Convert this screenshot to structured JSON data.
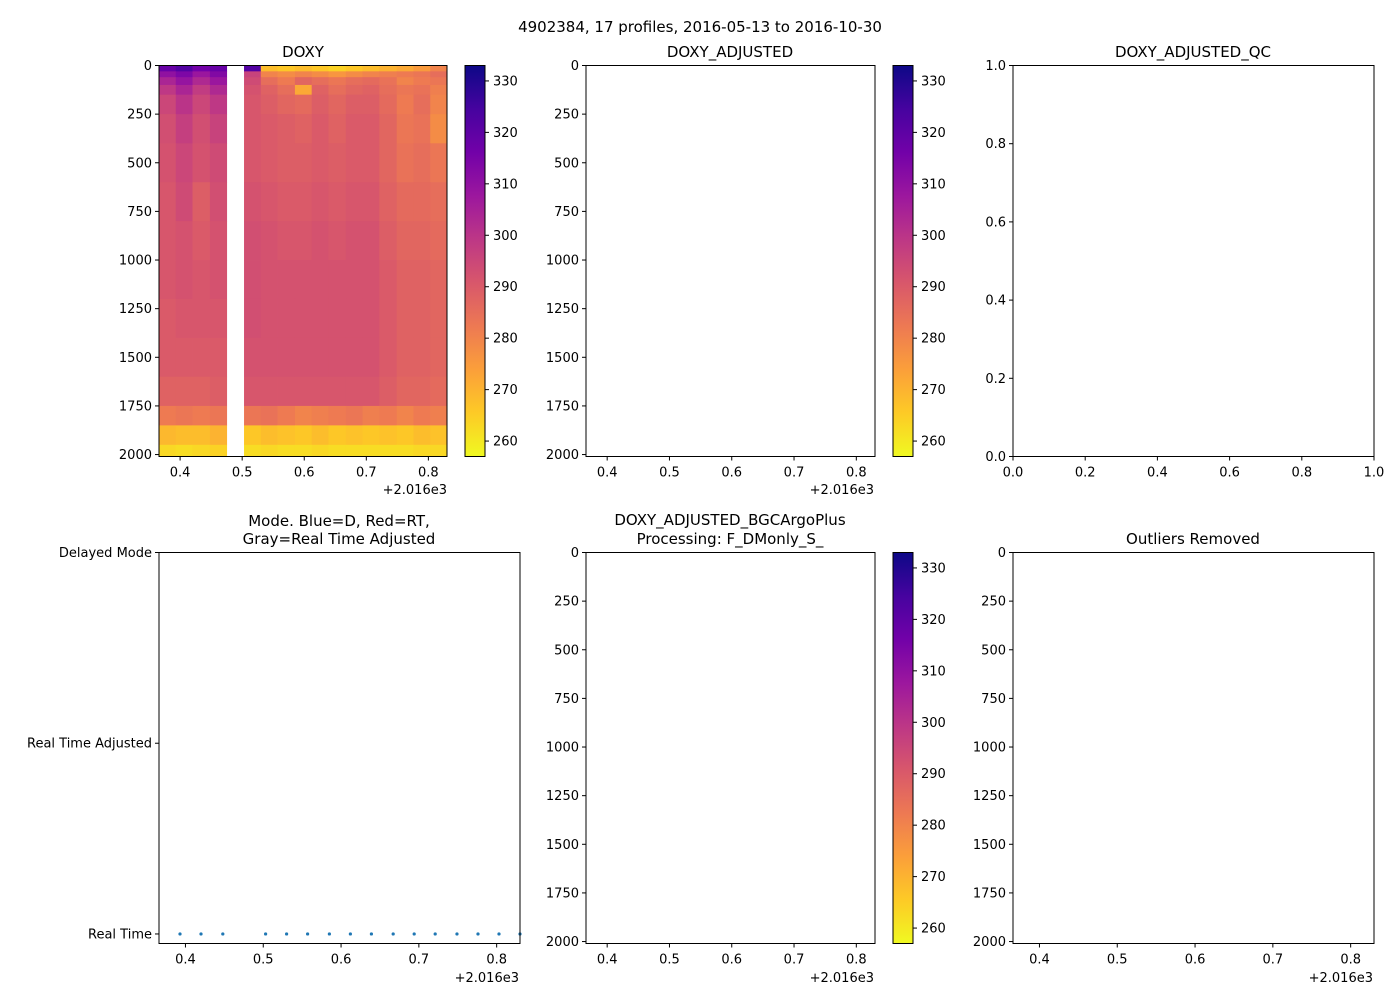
{
  "suptitle": "4902384, 17 profiles, 2016-05-13 to 2016-10-30",
  "colormap": {
    "name": "plasma",
    "stops": [
      "#0d0887",
      "#46039f",
      "#7201a8",
      "#9c179e",
      "#bd3786",
      "#d8576b",
      "#ed7953",
      "#fb9f3a",
      "#fdca26",
      "#f0f921"
    ]
  },
  "chart_data": [
    {
      "id": "doxy",
      "type": "heatmap",
      "title": "DOXY",
      "x_ticks": [
        "0.4",
        "0.5",
        "0.6",
        "0.7",
        "0.8"
      ],
      "x_tick_values": [
        0.4,
        0.5,
        0.6,
        0.7,
        0.8
      ],
      "x_offset_label": "+2.016e3",
      "xlim": [
        0.366,
        0.83
      ],
      "y_ticks": [
        "0",
        "250",
        "500",
        "750",
        "1000",
        "1250",
        "1500",
        "1750",
        "2000"
      ],
      "y_tick_values": [
        0,
        250,
        500,
        750,
        1000,
        1250,
        1500,
        1750,
        2000
      ],
      "ylim": [
        2010,
        0
      ],
      "colorbar": {
        "ticks": [
          "260",
          "270",
          "280",
          "290",
          "300",
          "310",
          "320",
          "330"
        ],
        "tick_values": [
          260,
          270,
          280,
          290,
          300,
          310,
          320,
          330
        ],
        "range": [
          257,
          333
        ]
      },
      "profile_times": [
        0.366,
        0.393,
        0.42,
        0.448,
        0.475,
        0.503,
        0.53,
        0.557,
        0.585,
        0.612,
        0.639,
        0.667,
        0.694,
        0.721,
        0.749,
        0.776,
        0.803,
        0.83
      ],
      "missing_profile": 4,
      "depth_edges": [
        0,
        30,
        60,
        100,
        150,
        250,
        400,
        600,
        800,
        1000,
        1200,
        1400,
        1600,
        1750,
        1850,
        1950,
        2010
      ],
      "values": [
        [
          318,
          322,
          316,
          318,
          0,
          322,
          268,
          266,
          268,
          266,
          264,
          266,
          268,
          270,
          272,
          275,
          280
        ],
        [
          310,
          314,
          308,
          313,
          0,
          296,
          280,
          278,
          280,
          278,
          276,
          278,
          280,
          281,
          282,
          283,
          285
        ],
        [
          304,
          309,
          303,
          308,
          0,
          294,
          285,
          282,
          287,
          285,
          283,
          285,
          286,
          284,
          280,
          282,
          283
        ],
        [
          299,
          304,
          298,
          303,
          0,
          292,
          288,
          285,
          272,
          288,
          285,
          287,
          288,
          285,
          283,
          284,
          281
        ],
        [
          295,
          300,
          295,
          299,
          0,
          291,
          289,
          287,
          286,
          289,
          287,
          289,
          289,
          286,
          282,
          285,
          280
        ],
        [
          293,
          297,
          293,
          296,
          0,
          291,
          290,
          289,
          288,
          290,
          288,
          290,
          290,
          287,
          283,
          284,
          278
        ],
        [
          292,
          295,
          292,
          294,
          0,
          291,
          290,
          289,
          289,
          290,
          289,
          290,
          290,
          287,
          284,
          285,
          283
        ],
        [
          291,
          294,
          289,
          293,
          0,
          292,
          291,
          290,
          290,
          291,
          290,
          291,
          291,
          288,
          286,
          286,
          285
        ],
        [
          291,
          292,
          290,
          292,
          0,
          293,
          292,
          291,
          291,
          292,
          291,
          292,
          292,
          289,
          287,
          287,
          286
        ],
        [
          291,
          292,
          291,
          292,
          0,
          293,
          292,
          292,
          292,
          292,
          292,
          292,
          292,
          290,
          288,
          288,
          287
        ],
        [
          290,
          291,
          291,
          291,
          0,
          293,
          292,
          292,
          292,
          292,
          292,
          292,
          292,
          290,
          288,
          288,
          287
        ],
        [
          290,
          290,
          290,
          290,
          0,
          292,
          292,
          292,
          292,
          292,
          292,
          292,
          292,
          290,
          288,
          288,
          287
        ],
        [
          288,
          288,
          288,
          289,
          0,
          291,
          291,
          291,
          291,
          291,
          291,
          291,
          291,
          289,
          287,
          287,
          286
        ],
        [
          282,
          283,
          282,
          283,
          0,
          283,
          284,
          282,
          280,
          281,
          282,
          283,
          281,
          282,
          280,
          282,
          281
        ],
        [
          269,
          268,
          268,
          270,
          0,
          266,
          268,
          267,
          266,
          268,
          266,
          267,
          266,
          267,
          266,
          268,
          267
        ],
        [
          263,
          262,
          263,
          264,
          0,
          262,
          263,
          262,
          262,
          263,
          262,
          262,
          262,
          262,
          262,
          263,
          263
        ]
      ]
    },
    {
      "id": "doxy-adjusted",
      "type": "heatmap",
      "title": "DOXY_ADJUSTED",
      "x_ticks": [
        "0.4",
        "0.5",
        "0.6",
        "0.7",
        "0.8"
      ],
      "x_tick_values": [
        0.4,
        0.5,
        0.6,
        0.7,
        0.8
      ],
      "x_offset_label": "+2.016e3",
      "xlim": [
        0.366,
        0.83
      ],
      "y_ticks": [
        "0",
        "250",
        "500",
        "750",
        "1000",
        "1250",
        "1500",
        "1750",
        "2000"
      ],
      "y_tick_values": [
        0,
        250,
        500,
        750,
        1000,
        1250,
        1500,
        1750,
        2000
      ],
      "ylim": [
        2010,
        0
      ],
      "colorbar": {
        "ticks": [
          "260",
          "270",
          "280",
          "290",
          "300",
          "310",
          "320",
          "330"
        ],
        "tick_values": [
          260,
          270,
          280,
          290,
          300,
          310,
          320,
          330
        ],
        "range": [
          257,
          333
        ]
      },
      "values": []
    },
    {
      "id": "doxy-adjusted-qc",
      "type": "scatter",
      "title": "DOXY_ADJUSTED_QC",
      "x_ticks": [
        "0.0",
        "0.2",
        "0.4",
        "0.6",
        "0.8",
        "1.0"
      ],
      "x_tick_values": [
        0,
        0.2,
        0.4,
        0.6,
        0.8,
        1.0
      ],
      "xlim": [
        0,
        1
      ],
      "y_ticks": [
        "0.0",
        "0.2",
        "0.4",
        "0.6",
        "0.8",
        "1.0"
      ],
      "y_tick_values": [
        0,
        0.2,
        0.4,
        0.6,
        0.8,
        1.0
      ],
      "ylim": [
        0,
        1
      ],
      "values": []
    },
    {
      "id": "mode",
      "type": "scatter",
      "title_lines": [
        "Mode. Blue=D, Red=RT,",
        "Gray=Real Time Adjusted"
      ],
      "x_ticks": [
        "0.4",
        "0.5",
        "0.6",
        "0.7",
        "0.8"
      ],
      "x_tick_values": [
        0.4,
        0.5,
        0.6,
        0.7,
        0.8
      ],
      "x_offset_label": "+2.016e3",
      "xlim": [
        0.366,
        0.83
      ],
      "y_ticks": [
        "Delayed Mode",
        "Real Time Adjusted",
        "Real Time"
      ],
      "y_tick_values": [
        2,
        1,
        0
      ],
      "ylim": [
        -0.05,
        2
      ],
      "marker_color": "#1f77b4",
      "x": [
        0.393,
        0.42,
        0.448,
        0.503,
        0.53,
        0.557,
        0.585,
        0.612,
        0.639,
        0.667,
        0.694,
        0.721,
        0.749,
        0.776,
        0.803,
        0.83
      ],
      "y": [
        0,
        0,
        0,
        0,
        0,
        0,
        0,
        0,
        0,
        0,
        0,
        0,
        0,
        0,
        0,
        0
      ]
    },
    {
      "id": "doxy-bgcargoplus",
      "type": "heatmap",
      "title_lines": [
        "DOXY_ADJUSTED_BGCArgoPlus",
        "Processing: F_DMonly_S_"
      ],
      "x_ticks": [
        "0.4",
        "0.5",
        "0.6",
        "0.7",
        "0.8"
      ],
      "x_tick_values": [
        0.4,
        0.5,
        0.6,
        0.7,
        0.8
      ],
      "x_offset_label": "+2.016e3",
      "xlim": [
        0.366,
        0.83
      ],
      "y_ticks": [
        "0",
        "250",
        "500",
        "750",
        "1000",
        "1250",
        "1500",
        "1750",
        "2000"
      ],
      "y_tick_values": [
        0,
        250,
        500,
        750,
        1000,
        1250,
        1500,
        1750,
        2000
      ],
      "ylim": [
        2010,
        0
      ],
      "colorbar": {
        "ticks": [
          "260",
          "270",
          "280",
          "290",
          "300",
          "310",
          "320",
          "330"
        ],
        "tick_values": [
          260,
          270,
          280,
          290,
          300,
          310,
          320,
          330
        ],
        "range": [
          257,
          333
        ]
      },
      "values": []
    },
    {
      "id": "outliers-removed",
      "type": "scatter",
      "title": "Outliers Removed",
      "x_ticks": [
        "0.4",
        "0.5",
        "0.6",
        "0.7",
        "0.8"
      ],
      "x_tick_values": [
        0.4,
        0.5,
        0.6,
        0.7,
        0.8
      ],
      "x_offset_label": "+2.016e3",
      "xlim": [
        0.366,
        0.83
      ],
      "y_ticks": [
        "0",
        "250",
        "500",
        "750",
        "1000",
        "1250",
        "1500",
        "1750",
        "2000"
      ],
      "y_tick_values": [
        0,
        250,
        500,
        750,
        1000,
        1250,
        1500,
        1750,
        2000
      ],
      "ylim": [
        2010,
        0
      ],
      "values": []
    }
  ]
}
